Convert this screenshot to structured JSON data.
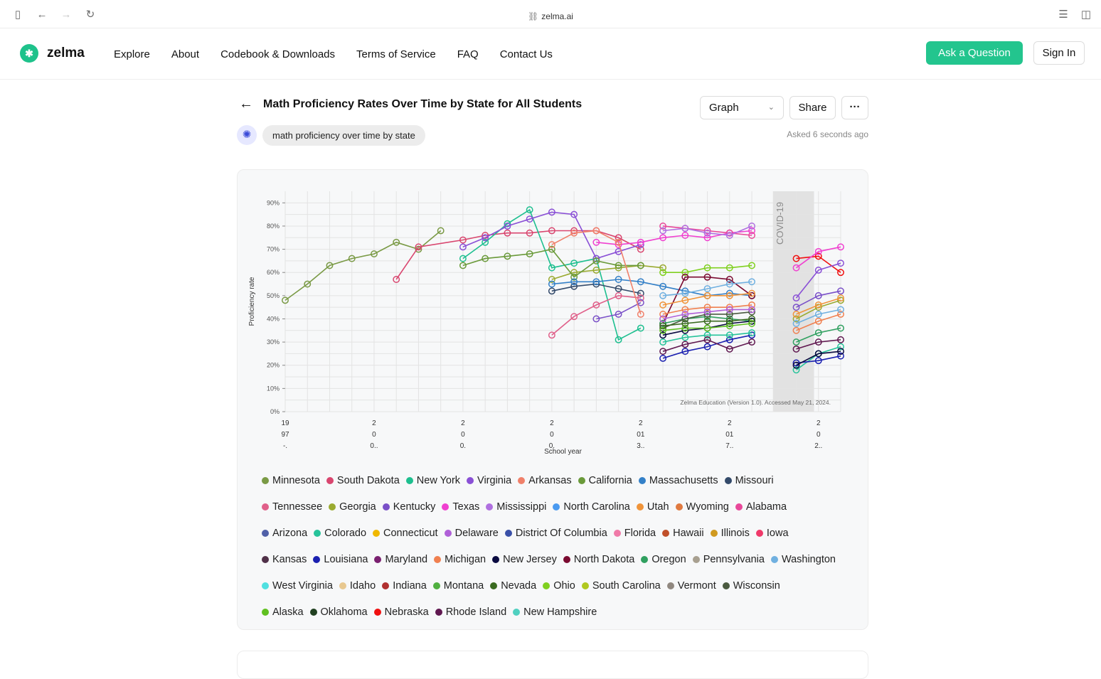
{
  "browser": {
    "url": "zelma.ai"
  },
  "nav": {
    "brand": "zelma",
    "links": [
      "Explore",
      "About",
      "Codebook & Downloads",
      "Terms of Service",
      "FAQ",
      "Contact Us"
    ],
    "ask_label": "Ask a Question",
    "signin_label": "Sign In"
  },
  "question": {
    "title": "Math Proficiency Rates Over Time by State for All Students",
    "view_select": "Graph",
    "share_label": "Share",
    "more_label": "···",
    "prompt": "math proficiency over time by state",
    "asked": "Asked 6 seconds ago"
  },
  "colors": {
    "accent": "#23c58e"
  },
  "chart_data": {
    "type": "line",
    "ylabel": "Proficiency rate",
    "xlabel": "School year",
    "ylim": [
      0,
      90
    ],
    "yticks": [
      "0%",
      "10%",
      "20%",
      "30%",
      "40%",
      "50%",
      "60%",
      "70%",
      "80%",
      "90%"
    ],
    "xticks": [
      "19\n97\n-.",
      "2\n0\n0..",
      "2\n0\n0.",
      "2\n0\n0.",
      "2\n01\n3..",
      "2\n01\n7..",
      "2\n0\n2.."
    ],
    "annotation": "COVID-19",
    "source": "Zelma Education (Version 1.0). Accessed May 21, 2024.",
    "legend": [
      {
        "name": "Minnesota",
        "color": "#7a9a45"
      },
      {
        "name": "South Dakota",
        "color": "#d9466f"
      },
      {
        "name": "New York",
        "color": "#1dbf8f"
      },
      {
        "name": "Virginia",
        "color": "#8a50d6"
      },
      {
        "name": "Arkansas",
        "color": "#f0806a"
      },
      {
        "name": "California",
        "color": "#6a9a3a"
      },
      {
        "name": "Massachusetts",
        "color": "#3380c8"
      },
      {
        "name": "Missouri",
        "color": "#334a6a"
      },
      {
        "name": "Tennessee",
        "color": "#e0608a"
      },
      {
        "name": "Georgia",
        "color": "#9aaa30"
      },
      {
        "name": "Kentucky",
        "color": "#7a50c8"
      },
      {
        "name": "Texas",
        "color": "#f040d0"
      },
      {
        "name": "Mississippi",
        "color": "#b070e0"
      },
      {
        "name": "North Carolina",
        "color": "#4a9af0"
      },
      {
        "name": "Utah",
        "color": "#f0943a"
      },
      {
        "name": "Wyoming",
        "color": "#e07a40"
      },
      {
        "name": "Alabama",
        "color": "#e8489a"
      },
      {
        "name": "Arizona",
        "color": "#5060a8"
      },
      {
        "name": "Colorado",
        "color": "#26c39a"
      },
      {
        "name": "Connecticut",
        "color": "#f0b800"
      },
      {
        "name": "Delaware",
        "color": "#b060d8"
      },
      {
        "name": "District Of Columbia",
        "color": "#3a50a8"
      },
      {
        "name": "Florida",
        "color": "#f07aa8"
      },
      {
        "name": "Hawaii",
        "color": "#c0502a"
      },
      {
        "name": "Illinois",
        "color": "#d09a20"
      },
      {
        "name": "Iowa",
        "color": "#f03a6a"
      },
      {
        "name": "Kansas",
        "color": "#503048"
      },
      {
        "name": "Louisiana",
        "color": "#1a20b0"
      },
      {
        "name": "Maryland",
        "color": "#7a2070"
      },
      {
        "name": "Michigan",
        "color": "#f08050"
      },
      {
        "name": "New Jersey",
        "color": "#0a0a40"
      },
      {
        "name": "North Dakota",
        "color": "#7a0a30"
      },
      {
        "name": "Oregon",
        "color": "#30a060"
      },
      {
        "name": "Pennsylvania",
        "color": "#a8a090"
      },
      {
        "name": "Washington",
        "color": "#70b0e0"
      },
      {
        "name": "West Virginia",
        "color": "#50e0e0"
      },
      {
        "name": "Idaho",
        "color": "#e8c890"
      },
      {
        "name": "Indiana",
        "color": "#b03030"
      },
      {
        "name": "Montana",
        "color": "#50b040"
      },
      {
        "name": "Nevada",
        "color": "#3a6a20"
      },
      {
        "name": "Ohio",
        "color": "#80d020"
      },
      {
        "name": "South Carolina",
        "color": "#b0c820"
      },
      {
        "name": "Vermont",
        "color": "#908880"
      },
      {
        "name": "Wisconsin",
        "color": "#4a5a40"
      },
      {
        "name": "Alaska",
        "color": "#60c020"
      },
      {
        "name": "Oklahoma",
        "color": "#204020"
      },
      {
        "name": "Nebraska",
        "color": "#f01010"
      },
      {
        "name": "Rhode Island",
        "color": "#601850"
      },
      {
        "name": "New Hampshire",
        "color": "#50d0c0"
      }
    ],
    "series": [
      {
        "name": "Minnesota",
        "x": [
          1997,
          1998,
          1999,
          2000,
          2001,
          2002,
          2003,
          2004
        ],
        "y": [
          48,
          55,
          63,
          66,
          68,
          73,
          70,
          78
        ]
      },
      {
        "name": "South Dakota",
        "x": [
          2002,
          2003,
          2005,
          2006,
          2007,
          2008,
          2009,
          2010,
          2011,
          2012,
          2013
        ],
        "y": [
          57,
          71,
          74,
          76,
          77,
          77,
          78,
          78,
          78,
          75,
          70
        ]
      },
      {
        "name": "New York",
        "x": [
          2005,
          2006,
          2007,
          2008,
          2009,
          2010,
          2011,
          2012,
          2013
        ],
        "y": [
          66,
          73,
          81,
          87,
          62,
          64,
          66,
          31,
          36
        ]
      },
      {
        "name": "Virginia",
        "x": [
          2005,
          2006,
          2007,
          2008,
          2009,
          2010,
          2011,
          2012,
          2013
        ],
        "y": [
          71,
          75,
          80,
          83,
          86,
          85,
          66,
          69,
          72
        ]
      },
      {
        "name": "Georgia",
        "x": [
          2009,
          2010,
          2011,
          2012,
          2013,
          2014
        ],
        "y": [
          57,
          60,
          61,
          62,
          63,
          62
        ]
      },
      {
        "name": "California",
        "x": [
          2005,
          2006,
          2007,
          2008,
          2009,
          2010,
          2011,
          2012,
          2013
        ],
        "y": [
          63,
          66,
          67,
          68,
          70,
          58,
          65,
          63,
          63
        ]
      },
      {
        "name": "Missouri",
        "x": [
          2009,
          2010,
          2011,
          2012,
          2013
        ],
        "y": [
          52,
          54,
          55,
          53,
          51
        ]
      },
      {
        "name": "Tennessee",
        "x": [
          2009,
          2010,
          2011,
          2012,
          2013
        ],
        "y": [
          33,
          41,
          46,
          50,
          49
        ]
      },
      {
        "name": "Kentucky",
        "x": [
          2011,
          2012,
          2013
        ],
        "y": [
          40,
          42,
          47
        ]
      },
      {
        "name": "Massachusetts",
        "x": [
          2009,
          2010,
          2011,
          2012,
          2013,
          2014,
          2015,
          2016,
          2017,
          2018
        ],
        "y": [
          55,
          56,
          56,
          57,
          56,
          54,
          52,
          50,
          51,
          50
        ]
      },
      {
        "name": "Texas",
        "x": [
          2011,
          2012,
          2013,
          2014,
          2015,
          2016,
          2017,
          2018
        ],
        "y": [
          73,
          72,
          73,
          75,
          76,
          75,
          77,
          78
        ]
      },
      {
        "name": "Arkansas",
        "x": [
          2009,
          2010,
          2011,
          2012,
          2013
        ],
        "y": [
          72,
          77,
          78,
          73,
          42
        ]
      },
      {
        "name": "Alabama",
        "x": [
          2014,
          2015,
          2016,
          2017,
          2018
        ],
        "y": [
          80,
          79,
          78,
          77,
          76
        ]
      },
      {
        "name": "Mississippi",
        "x": [
          2014,
          2015,
          2016,
          2017,
          2018
        ],
        "y": [
          78,
          79,
          77,
          76,
          80
        ]
      },
      {
        "name": "Ohio",
        "x": [
          2014,
          2015,
          2016,
          2017,
          2018
        ],
        "y": [
          60,
          60,
          62,
          62,
          63
        ]
      },
      {
        "name": "Louisiana",
        "x": [
          2014,
          2015,
          2016,
          2017,
          2018
        ],
        "y": [
          23,
          26,
          28,
          31,
          33
        ]
      },
      {
        "name": "North Dakota",
        "x": [
          2014,
          2015,
          2016,
          2017,
          2018
        ],
        "y": [
          38,
          58,
          58,
          57,
          50
        ]
      },
      {
        "name": "Washington",
        "x": [
          2014,
          2015,
          2016,
          2017,
          2018
        ],
        "y": [
          50,
          51,
          53,
          55,
          56
        ]
      },
      {
        "name": "Oregon",
        "x": [
          2014,
          2015,
          2016,
          2017,
          2018
        ],
        "y": [
          38,
          40,
          41,
          40,
          39
        ]
      },
      {
        "name": "Colorado",
        "x": [
          2014,
          2015,
          2016,
          2017,
          2018
        ],
        "y": [
          30,
          32,
          33,
          33,
          34
        ]
      },
      {
        "name": "Rhode Island",
        "x": [
          2014,
          2015,
          2016,
          2017,
          2018
        ],
        "y": [
          26,
          29,
          31,
          27,
          30
        ]
      },
      {
        "name": "Wisconsin",
        "x": [
          2014,
          2015,
          2016,
          2017,
          2018
        ],
        "y": [
          36,
          40,
          42,
          42,
          43
        ]
      },
      {
        "name": "Michigan",
        "x": [
          2014,
          2015,
          2016,
          2017,
          2018
        ],
        "y": [
          42,
          44,
          45,
          45,
          46
        ]
      },
      {
        "name": "Utah",
        "x": [
          2014,
          2015,
          2016,
          2017,
          2018
        ],
        "y": [
          46,
          48,
          50,
          50,
          51
        ]
      },
      {
        "name": "Delaware",
        "x": [
          2014,
          2015,
          2016,
          2017,
          2018
        ],
        "y": [
          40,
          42,
          43,
          44,
          44
        ]
      },
      {
        "name": "New Jersey",
        "x": [
          2014,
          2015,
          2016,
          2017,
          2018
        ],
        "y": [
          33,
          35,
          36,
          38,
          39
        ]
      },
      {
        "name": "Alaska",
        "x": [
          2014,
          2015,
          2016,
          2017,
          2018
        ],
        "y": [
          35,
          36,
          36,
          37,
          38
        ]
      },
      {
        "name": "Nevada",
        "x": [
          2014,
          2015,
          2016,
          2017,
          2018
        ],
        "y": [
          37,
          38,
          39,
          39,
          40
        ]
      },
      {
        "name": "Nebraska",
        "x": [
          2020,
          2021,
          2022
        ],
        "y": [
          66,
          67,
          60
        ]
      },
      {
        "name": "Texas",
        "x": [
          2020,
          2021,
          2022
        ],
        "y": [
          62,
          69,
          71
        ]
      },
      {
        "name": "Virginia",
        "x": [
          2020,
          2021,
          2022
        ],
        "y": [
          49,
          61,
          64
        ]
      },
      {
        "name": "Kentucky",
        "x": [
          2020,
          2021,
          2022
        ],
        "y": [
          45,
          50,
          52
        ]
      },
      {
        "name": "Georgia",
        "x": [
          2020,
          2021,
          2022
        ],
        "y": [
          40,
          45,
          48
        ]
      },
      {
        "name": "Colorado",
        "x": [
          2020,
          2021,
          2022
        ],
        "y": [
          18,
          25,
          28
        ]
      },
      {
        "name": "Louisiana",
        "x": [
          2020,
          2021,
          2022
        ],
        "y": [
          21,
          22,
          24
        ]
      },
      {
        "name": "New Jersey",
        "x": [
          2020,
          2021,
          2022
        ],
        "y": [
          20,
          25,
          26
        ]
      },
      {
        "name": "Oregon",
        "x": [
          2020,
          2021,
          2022
        ],
        "y": [
          30,
          34,
          36
        ]
      },
      {
        "name": "Michigan",
        "x": [
          2020,
          2021,
          2022
        ],
        "y": [
          35,
          39,
          42
        ]
      },
      {
        "name": "Washington",
        "x": [
          2020,
          2021,
          2022
        ],
        "y": [
          38,
          42,
          44
        ]
      },
      {
        "name": "Utah",
        "x": [
          2020,
          2021,
          2022
        ],
        "y": [
          42,
          46,
          49
        ]
      },
      {
        "name": "Rhode Island",
        "x": [
          2020,
          2021,
          2022
        ],
        "y": [
          27,
          30,
          31
        ]
      }
    ]
  }
}
